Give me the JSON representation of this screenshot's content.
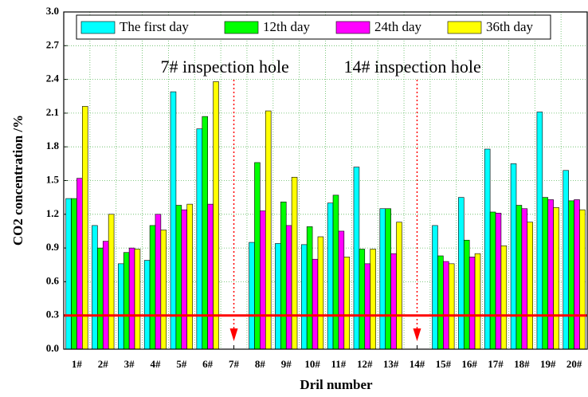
{
  "chart_data": {
    "type": "bar",
    "y_label": "CO2 concentration /%",
    "x_label": "Dril number",
    "categories": [
      "1#",
      "2#",
      "3#",
      "4#",
      "5#",
      "6#",
      "7#",
      "8#",
      "9#",
      "10#",
      "11#",
      "12#",
      "13#",
      "14#",
      "15#",
      "16#",
      "17#",
      "18#",
      "19#",
      "20#"
    ],
    "series": [
      {
        "name": "The first day",
        "color": "#00ffff",
        "values": [
          1.34,
          1.1,
          0.76,
          0.79,
          2.29,
          1.96,
          null,
          0.95,
          0.94,
          0.93,
          1.3,
          1.62,
          1.25,
          null,
          1.1,
          1.35,
          1.78,
          1.65,
          2.11,
          1.59
        ]
      },
      {
        "name": "12th day",
        "color": "#00ff00",
        "values": [
          1.34,
          0.9,
          0.86,
          1.1,
          1.28,
          2.07,
          null,
          1.66,
          1.31,
          1.09,
          1.37,
          0.89,
          1.25,
          null,
          0.83,
          0.97,
          1.22,
          1.28,
          1.35,
          1.32
        ]
      },
      {
        "name": "24th day",
        "color": "#ff00ff",
        "values": [
          1.52,
          0.96,
          0.9,
          1.2,
          1.24,
          1.29,
          null,
          1.23,
          1.1,
          0.8,
          1.05,
          0.76,
          0.85,
          null,
          0.78,
          0.82,
          1.21,
          1.25,
          1.33,
          1.33
        ]
      },
      {
        "name": "36th day",
        "color": "#ffff00",
        "values": [
          2.16,
          1.2,
          0.89,
          1.06,
          1.29,
          2.38,
          null,
          2.12,
          1.53,
          1.0,
          0.82,
          0.89,
          1.13,
          null,
          0.76,
          0.85,
          0.92,
          1.13,
          1.26,
          1.24
        ]
      }
    ],
    "ylim": [
      0,
      3.0
    ],
    "yticks": [
      {
        "value": 0,
        "label": "0.0"
      },
      0.3,
      0.6,
      0.9,
      1.2,
      1.5,
      1.8,
      2.1,
      2.4,
      2.7,
      {
        "value": 3.0,
        "label": "3.0"
      }
    ],
    "grid": true,
    "reference_line": {
      "value": 0.3,
      "color": "#ff0000"
    },
    "annotations": [
      "7# inspection hole",
      "14# inspection hole"
    ],
    "legend": "top"
  }
}
